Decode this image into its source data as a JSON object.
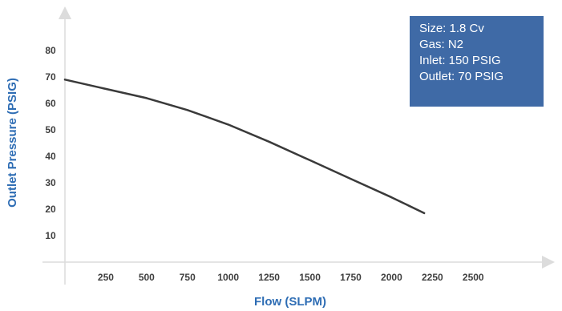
{
  "chart_data": {
    "type": "line",
    "xlabel": "Flow (SLPM)",
    "ylabel": "Outlet Pressure (PSIG)",
    "xlim": [
      0,
      2750
    ],
    "ylim": [
      0,
      90
    ],
    "x_ticks": [
      250,
      500,
      750,
      1000,
      1250,
      1500,
      1750,
      2000,
      2250,
      2500
    ],
    "y_ticks": [
      10,
      20,
      30,
      40,
      50,
      60,
      70,
      80
    ],
    "grid": false,
    "series": [
      {
        "x": [
          0,
          250,
          500,
          750,
          1000,
          1250,
          1500,
          1750,
          2000,
          2200
        ],
        "y": [
          69,
          65.5,
          62,
          57.5,
          52,
          45.5,
          38.5,
          31.5,
          24.5,
          18.5
        ]
      }
    ],
    "annotation": {
      "lines": [
        "Size: 1.8 Cv",
        "Gas: N2",
        "Inlet: 150 PSIG",
        "Outlet: 70 PSIG"
      ],
      "position": "top-right"
    },
    "colors": {
      "line": "#3a3a3a",
      "axis": "#dcdcdc",
      "axis_title": "#2e6db4",
      "annotation_bg": "#3f6aa6"
    }
  }
}
